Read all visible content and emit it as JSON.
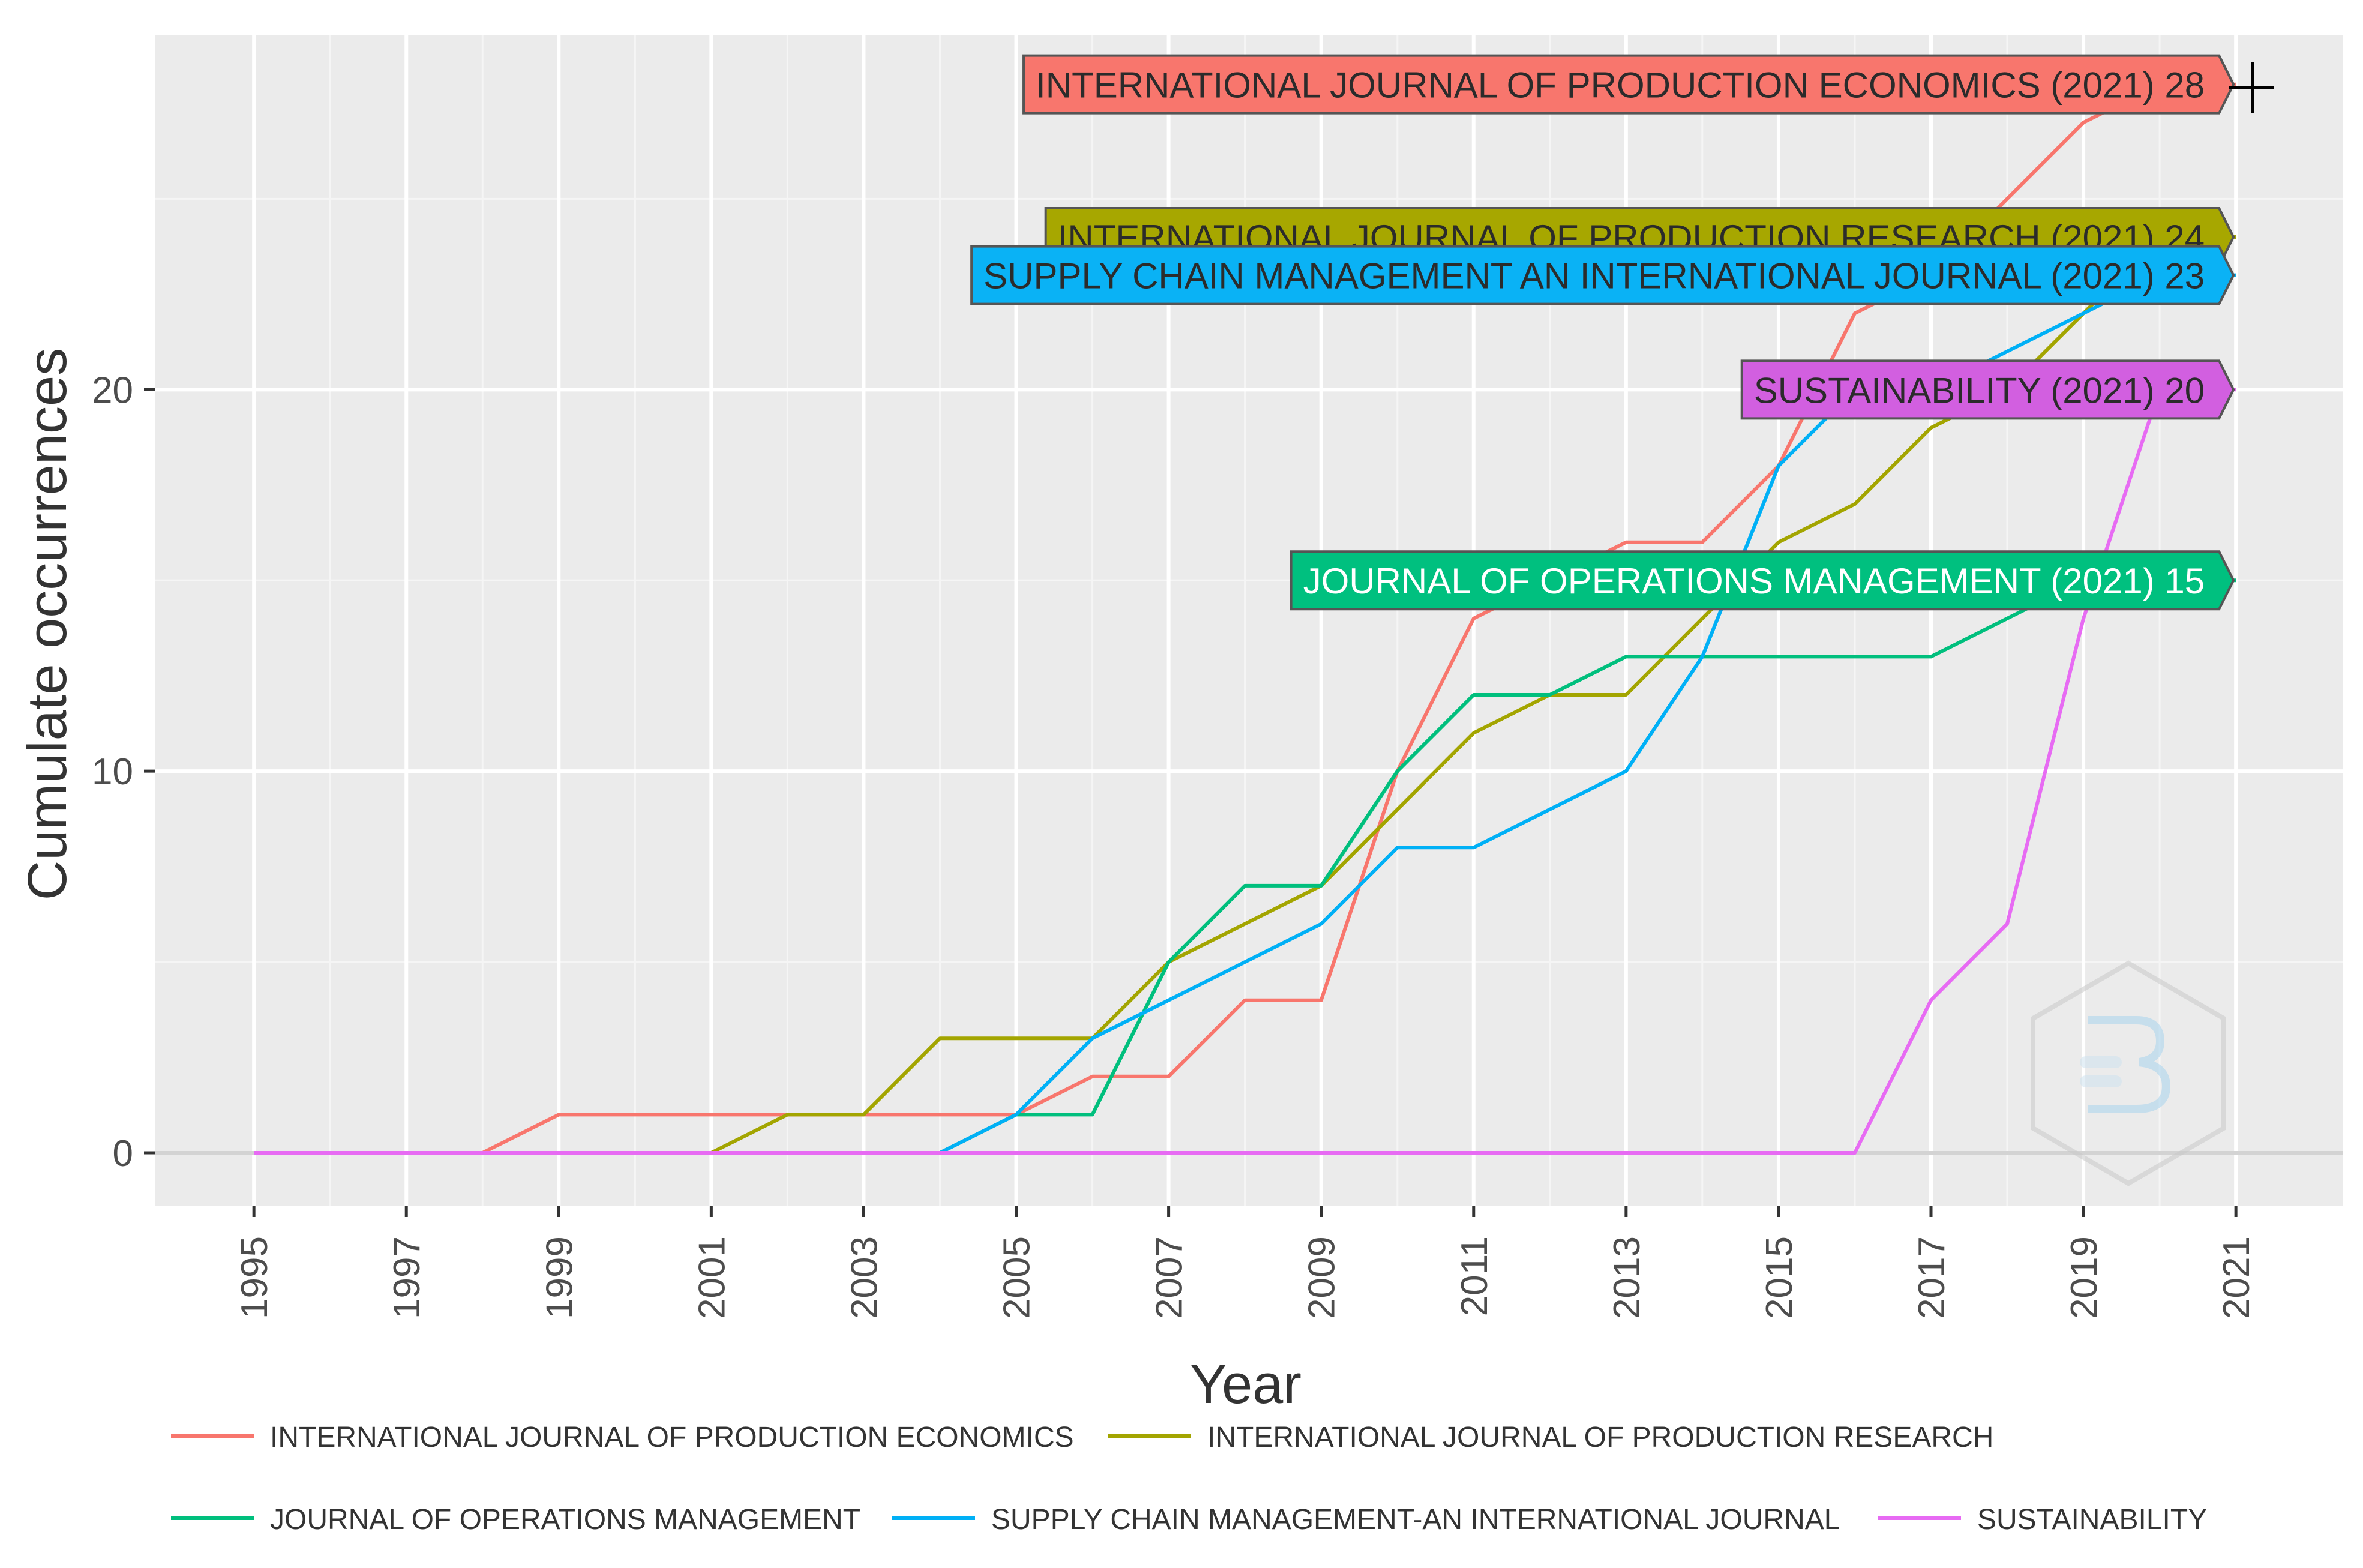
{
  "chart_data": {
    "type": "line",
    "title": "",
    "xlabel": "Year",
    "ylabel": "Cumulate occurrences",
    "xlim": [
      1993.7,
      2022.4
    ],
    "ylim": [
      -1.4,
      29.3
    ],
    "x_ticks": [
      1995,
      1997,
      1999,
      2001,
      2003,
      2005,
      2007,
      2009,
      2011,
      2013,
      2015,
      2017,
      2019,
      2021
    ],
    "y_ticks": [
      0,
      10,
      20
    ],
    "grid": true,
    "legend_position": "bottom",
    "x": [
      1995,
      1996,
      1997,
      1998,
      1999,
      2000,
      2001,
      2002,
      2003,
      2004,
      2005,
      2006,
      2007,
      2008,
      2009,
      2010,
      2011,
      2012,
      2013,
      2014,
      2015,
      2016,
      2017,
      2018,
      2019,
      2020,
      2021
    ],
    "series": [
      {
        "name": "INTERNATIONAL JOURNAL OF PRODUCTION ECONOMICS",
        "color": "#F8766D",
        "values": [
          0,
          0,
          0,
          0,
          1,
          1,
          1,
          1,
          1,
          1,
          1,
          2,
          2,
          4,
          4,
          10,
          14,
          15,
          16,
          16,
          18,
          22,
          23,
          25,
          27,
          28,
          28
        ],
        "callout": "INTERNATIONAL JOURNAL OF PRODUCTION ECONOMICS (2021) 28",
        "callout_value": 28
      },
      {
        "name": "INTERNATIONAL JOURNAL OF PRODUCTION RESEARCH",
        "color": "#A3A500",
        "values": [
          0,
          0,
          0,
          0,
          0,
          0,
          0,
          1,
          1,
          3,
          3,
          3,
          5,
          6,
          7,
          9,
          11,
          12,
          12,
          14,
          16,
          17,
          19,
          20,
          22,
          24,
          24
        ],
        "callout": "INTERNATIONAL JOURNAL OF PRODUCTION RESEARCH (2021) 24",
        "callout_value": 24
      },
      {
        "name": "JOURNAL OF OPERATIONS MANAGEMENT",
        "color": "#00BF7D",
        "values": [
          0,
          0,
          0,
          0,
          0,
          0,
          0,
          0,
          0,
          0,
          1,
          1,
          5,
          7,
          7,
          10,
          12,
          12,
          13,
          13,
          13,
          13,
          13,
          14,
          15,
          15,
          15
        ],
        "callout": "JOURNAL OF OPERATIONS MANAGEMENT (2021) 15",
        "callout_value": 15
      },
      {
        "name": "SUPPLY CHAIN MANAGEMENT-AN INTERNATIONAL JOURNAL",
        "color": "#00B0F6",
        "values": [
          0,
          0,
          0,
          0,
          0,
          0,
          0,
          0,
          0,
          0,
          1,
          3,
          4,
          5,
          6,
          8,
          8,
          9,
          10,
          13,
          18,
          20,
          20,
          21,
          22,
          23,
          23
        ],
        "callout": "SUPPLY CHAIN MANAGEMENT AN INTERNATIONAL JOURNAL (2021) 23",
        "callout_value": 23
      },
      {
        "name": "SUSTAINABILITY",
        "color": "#E76BF3",
        "values": [
          0,
          0,
          0,
          0,
          0,
          0,
          0,
          0,
          0,
          0,
          0,
          0,
          0,
          0,
          0,
          0,
          0,
          0,
          0,
          0,
          0,
          0,
          4,
          6,
          14,
          20,
          20
        ],
        "callout": "SUSTAINABILITY (2021) 20",
        "callout_value": 20
      }
    ]
  }
}
